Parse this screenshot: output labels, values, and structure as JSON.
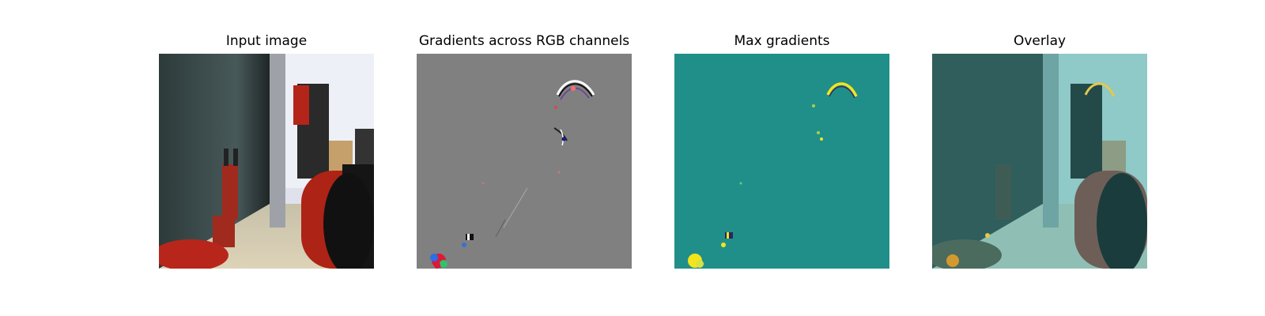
{
  "figure": {
    "panels": [
      {
        "title": "Input image"
      },
      {
        "title": "Gradients across RGB channels"
      },
      {
        "title": "Max gradients"
      },
      {
        "title": "Overlay"
      }
    ]
  },
  "colors": {
    "input_floor": "#d8cfb4",
    "input_wall": "#3c4a4a",
    "robot_red": "#b9271c",
    "robot_dark": "#1b1b1b",
    "gradient_gray": "#808080",
    "max_gradient_teal": "#218f89",
    "max_gradient_yellow": "#f2e51c",
    "overlay_teal": "#67bcb8"
  }
}
